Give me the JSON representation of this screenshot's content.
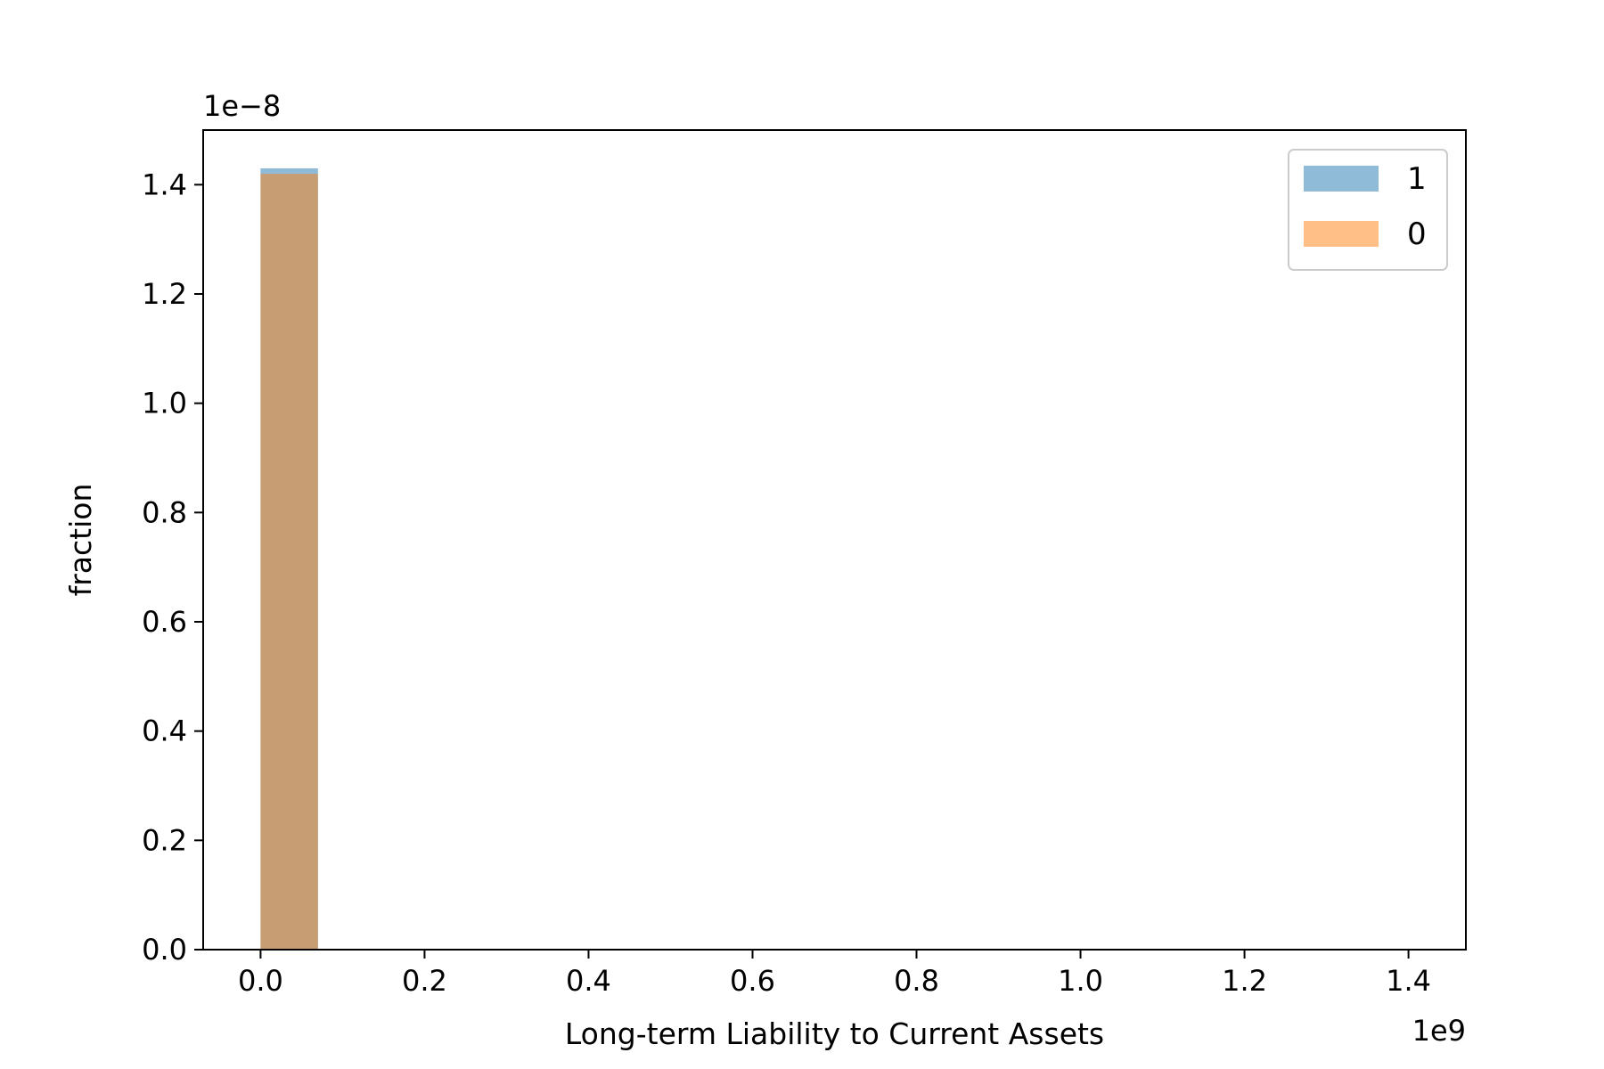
{
  "chart_data": {
    "type": "bar",
    "xlabel": "Long-term Liability to Current Assets",
    "ylabel": "fraction",
    "x_offset_label": "1e9",
    "y_offset_label": "1e−8",
    "xlim": [
      -0.07,
      1.47
    ],
    "ylim": [
      0,
      1.5
    ],
    "x_ticks": [
      0.0,
      0.2,
      0.4,
      0.6,
      0.8,
      1.0,
      1.2,
      1.4
    ],
    "x_tick_labels": [
      "0.0",
      "0.2",
      "0.4",
      "0.6",
      "0.8",
      "1.0",
      "1.2",
      "1.4"
    ],
    "y_ticks": [
      0.0,
      0.2,
      0.4,
      0.6,
      0.8,
      1.0,
      1.2,
      1.4
    ],
    "y_tick_labels": [
      "0.0",
      "0.2",
      "0.4",
      "0.6",
      "0.8",
      "1.0",
      "1.2",
      "1.4"
    ],
    "grid": false,
    "legend_position": "top-right",
    "series": [
      {
        "name": "1",
        "color": "#1f77b4",
        "bins": [
          {
            "x0": 0.0,
            "x1": 0.07,
            "value": 1.43
          }
        ]
      },
      {
        "name": "0",
        "color": "#ff7f0e",
        "bins": [
          {
            "x0": 0.0,
            "x1": 0.07,
            "value": 1.42
          }
        ]
      }
    ]
  }
}
